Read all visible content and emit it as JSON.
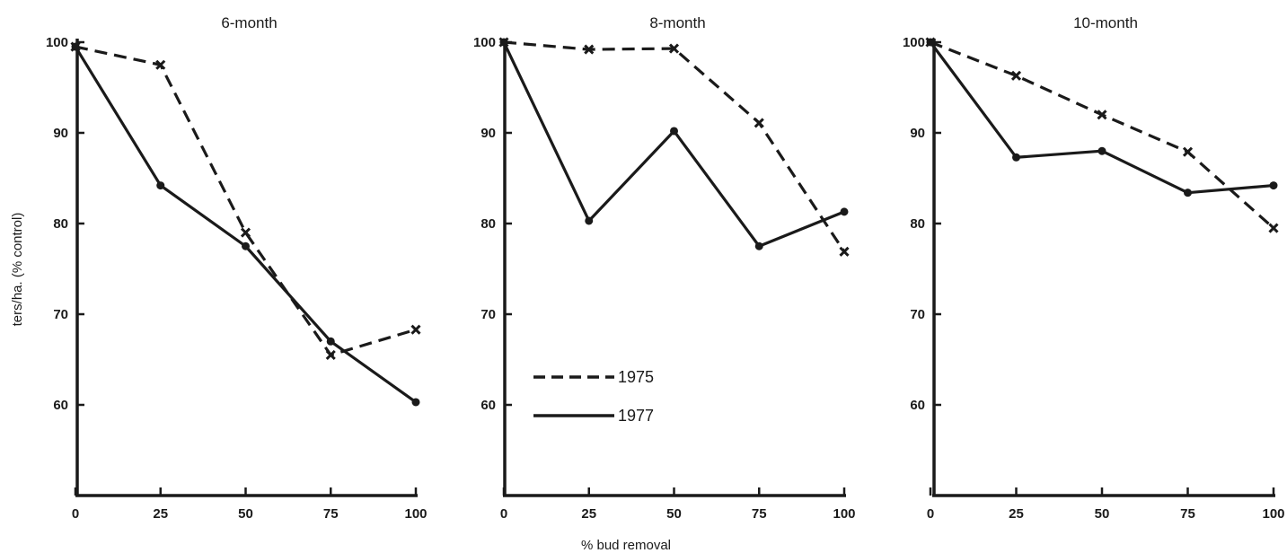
{
  "figure": {
    "ylabel": "ters/ha. (% control)",
    "xlabel": "% bud removal"
  },
  "chart_data": [
    {
      "type": "line",
      "title": "6-month",
      "xlabel": "% bud removal",
      "ylabel": "ters/ha. (% control)",
      "xlim": [
        0,
        100
      ],
      "ylim": [
        50,
        100
      ],
      "xticks": [
        "0",
        "25",
        "50",
        "75",
        "100"
      ],
      "yticks": [
        "60",
        "70",
        "80",
        "90",
        "100"
      ],
      "grid": false,
      "series": [
        {
          "name": "1975",
          "style": "dashed",
          "marker": "x",
          "x": [
            0,
            25,
            50,
            75,
            100
          ],
          "y": [
            99.5,
            97.5,
            79,
            65.5,
            68.3
          ]
        },
        {
          "name": "1977",
          "style": "solid",
          "marker": "dot",
          "x": [
            0,
            25,
            50,
            75,
            100
          ],
          "y": [
            99.5,
            84.2,
            77.5,
            67,
            60.3
          ]
        }
      ]
    },
    {
      "type": "line",
      "title": "8-month",
      "xlabel": "% bud removal",
      "ylabel": "",
      "xlim": [
        0,
        100
      ],
      "ylim": [
        50,
        100
      ],
      "xticks": [
        "0",
        "25",
        "50",
        "75",
        "100"
      ],
      "yticks": [
        "60",
        "70",
        "80",
        "90",
        "100"
      ],
      "grid": false,
      "series": [
        {
          "name": "1975",
          "style": "dashed",
          "marker": "x",
          "x": [
            0,
            25,
            50,
            75,
            100
          ],
          "y": [
            100,
            99.2,
            99.3,
            91.1,
            76.9
          ]
        },
        {
          "name": "1977",
          "style": "solid",
          "marker": "dot",
          "x": [
            0,
            25,
            50,
            75,
            100
          ],
          "y": [
            100,
            80.3,
            90.2,
            77.5,
            81.3
          ]
        }
      ]
    },
    {
      "type": "line",
      "title": "10-month",
      "xlabel": "% bud removal",
      "ylabel": "",
      "xlim": [
        0,
        100
      ],
      "ylim": [
        50,
        100
      ],
      "xticks": [
        "0",
        "25",
        "50",
        "75",
        "100"
      ],
      "yticks": [
        "60",
        "70",
        "80",
        "90",
        "100"
      ],
      "grid": false,
      "series": [
        {
          "name": "1975",
          "style": "dashed",
          "marker": "x",
          "x": [
            0,
            25,
            50,
            75,
            100
          ],
          "y": [
            100,
            96.3,
            92,
            87.9,
            79.5
          ]
        },
        {
          "name": "1977",
          "style": "solid",
          "marker": "dot",
          "x": [
            0,
            25,
            50,
            75,
            100
          ],
          "y": [
            100,
            87.3,
            88,
            83.4,
            84.2
          ]
        }
      ]
    }
  ],
  "legend": {
    "placement": "lower-left of middle panel",
    "entries": [
      {
        "label": "1975",
        "style": "dashed"
      },
      {
        "label": "1977",
        "style": "solid"
      }
    ]
  },
  "colors": {
    "ink": "#1a1a1a",
    "background": "#ffffff"
  }
}
